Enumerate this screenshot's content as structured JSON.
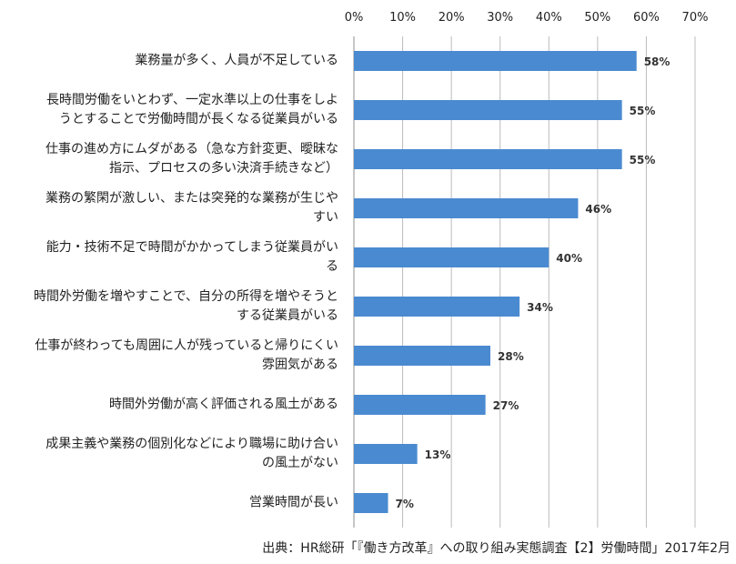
{
  "chart_data": {
    "type": "bar",
    "orientation": "horizontal",
    "categories": [
      "業務量が多く、人員が不足している",
      "長時間労働をいとわず、一定水準以上の仕事をしようとすることで労働時間が長くなる従業員がいる",
      "仕事の進め方にムダがある（急な方針変更、曖昧な指示、プロセスの多い決済手続きなど）",
      "業務の繁閑が激しい、または突発的な業務が生じやすい",
      "能力・技術不足で時間がかかってしまう従業員がいる",
      "時間外労働を増やすことで、自分の所得を増やそうとする従業員がいる",
      "仕事が終わっても周囲に人が残っていると帰りにくい雰囲気がある",
      "時間外労働が高く評価される風土がある",
      "成果主義や業務の個別化などにより職場に助け合いの風土がない",
      "営業時間が長い"
    ],
    "category_lines": [
      "業務量が多く、人員が不足している",
      "長時間労働をいとわず、一定水準以上の仕事をしよ\nうとすることで労働時間が長くなる従業員がいる",
      "仕事の進め方にムダがある（急な方針変更、曖昧な\n指示、プロセスの多い決済手続きなど）",
      "業務の繁閑が激しい、または突発的な業務が生じや\nすい",
      "能力・技術不足で時間がかかってしまう従業員がい\nる",
      "時間外労働を増やすことで、自分の所得を増やそうと\nする従業員がいる",
      "仕事が終わっても周囲に人が残っていると帰りにくい\n雰囲気がある",
      "時間外労働が高く評価される風土がある",
      "成果主義や業務の個別化などにより職場に助け合い\nの風土がない",
      "営業時間が長い"
    ],
    "values": [
      58,
      55,
      55,
      46,
      40,
      34,
      28,
      27,
      13,
      7
    ],
    "value_labels": [
      "58%",
      "55%",
      "55%",
      "46%",
      "40%",
      "34%",
      "28%",
      "27%",
      "13%",
      "7%"
    ],
    "xlim": [
      0,
      70
    ],
    "ticks": [
      0,
      10,
      20,
      30,
      40,
      50,
      60,
      70
    ],
    "tick_labels": [
      "0%",
      "10%",
      "20%",
      "30%",
      "40%",
      "50%",
      "60%",
      "70%"
    ],
    "axis_position": "top",
    "grid": true,
    "bar_color": "#4a8ad0",
    "grid_color": "#bcbcbc"
  },
  "source": "出典：HR総研「『働き方改革』への取り組み実態調査【2】労働時間」2017年2月"
}
